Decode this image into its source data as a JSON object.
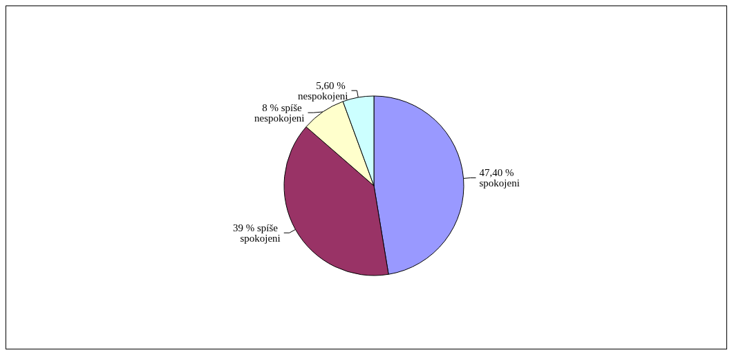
{
  "chart_data": {
    "type": "pie",
    "categories": [
      "spokojeni",
      "spíše spokojeni",
      "spíše nespokojeni",
      "nespokojeni"
    ],
    "values": [
      47.4,
      39,
      8,
      5.6
    ],
    "value_labels": [
      "47,40 %",
      "39 %",
      "8 %",
      "5,60 %"
    ],
    "colors": [
      "#9999ff",
      "#993366",
      "#ffffcc",
      "#ccffff"
    ],
    "legend": false
  }
}
